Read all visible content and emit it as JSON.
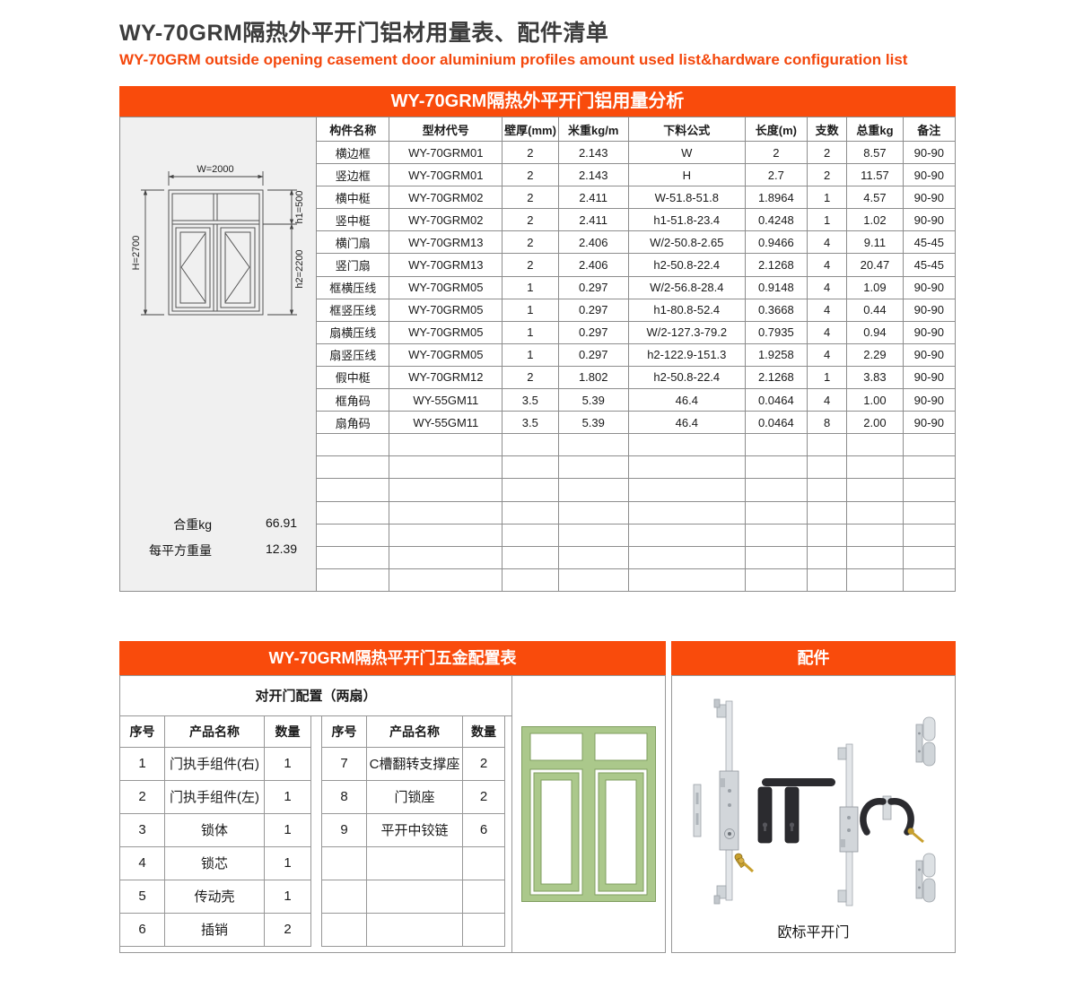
{
  "header": {
    "title": "WY-70GRM隔热外平开门铝材用量表、配件清单",
    "subtitle": "WY-70GRM outside opening casement door aluminium profiles  amount used list&hardware configuration list"
  },
  "colors": {
    "accent_orange": "#f94b0c",
    "panel_gray": "#f0f0f0",
    "table_border": "#8d8d8d",
    "door_green": "#abc88b",
    "door_green_edge": "#7f9e5f"
  },
  "section1": {
    "bar_title": "WY-70GRM隔热外平开门铝用量分析"
  },
  "diagram": {
    "w": "W=2000",
    "h": "H=2700",
    "h1": "h1=500",
    "h2": "h2=2200"
  },
  "totals": {
    "total_weight_label": "合重kg",
    "total_weight_value": "66.91",
    "per_sqm_label": "每平方重量",
    "per_sqm_value": "12.39"
  },
  "main_table": {
    "columns": [
      "构件名称",
      "型材代号",
      "壁厚(mm)",
      "米重kg/m",
      "下料公式",
      "长度(m)",
      "支数",
      "总重kg",
      "备注"
    ],
    "rows": [
      [
        "横边框",
        "WY-70GRM01",
        "2",
        "2.143",
        "W",
        "2",
        "2",
        "8.57",
        "90-90"
      ],
      [
        "竖边框",
        "WY-70GRM01",
        "2",
        "2.143",
        "H",
        "2.7",
        "2",
        "11.57",
        "90-90"
      ],
      [
        "横中梃",
        "WY-70GRM02",
        "2",
        "2.411",
        "W-51.8-51.8",
        "1.8964",
        "1",
        "4.57",
        "90-90"
      ],
      [
        "竖中梃",
        "WY-70GRM02",
        "2",
        "2.411",
        "h1-51.8-23.4",
        "0.4248",
        "1",
        "1.02",
        "90-90"
      ],
      [
        "横门扇",
        "WY-70GRM13",
        "2",
        "2.406",
        "W/2-50.8-2.65",
        "0.9466",
        "4",
        "9.11",
        "45-45"
      ],
      [
        "竖门扇",
        "WY-70GRM13",
        "2",
        "2.406",
        "h2-50.8-22.4",
        "2.1268",
        "4",
        "20.47",
        "45-45"
      ],
      [
        "框横压线",
        "WY-70GRM05",
        "1",
        "0.297",
        "W/2-56.8-28.4",
        "0.9148",
        "4",
        "1.09",
        "90-90"
      ],
      [
        "框竖压线",
        "WY-70GRM05",
        "1",
        "0.297",
        "h1-80.8-52.4",
        "0.3668",
        "4",
        "0.44",
        "90-90"
      ],
      [
        "扇横压线",
        "WY-70GRM05",
        "1",
        "0.297",
        "W/2-127.3-79.2",
        "0.7935",
        "4",
        "0.94",
        "90-90"
      ],
      [
        "扇竖压线",
        "WY-70GRM05",
        "1",
        "0.297",
        "h2-122.9-151.3",
        "1.9258",
        "4",
        "2.29",
        "90-90"
      ],
      [
        "假中梃",
        "WY-70GRM12",
        "2",
        "1.802",
        "h2-50.8-22.4",
        "2.1268",
        "1",
        "3.83",
        "90-90"
      ],
      [
        "框角码",
        "WY-55GM11",
        "3.5",
        "5.39",
        "46.4",
        "0.0464",
        "4",
        "1.00",
        "90-90"
      ],
      [
        "扇角码",
        "WY-55GM11",
        "3.5",
        "5.39",
        "46.4",
        "0.0464",
        "8",
        "2.00",
        "90-90"
      ]
    ],
    "empty_row_count": 7
  },
  "section2": {
    "left_bar_title": "WY-70GRM隔热平开门五金配置表",
    "right_bar_title": "配件",
    "subheader": "对开门配置（两扇）",
    "caption": "欧标平开门"
  },
  "hardware": {
    "columns": [
      "序号",
      "产品名称",
      "数量"
    ],
    "left_rows": [
      [
        "1",
        "门执手组件(右)",
        "1"
      ],
      [
        "2",
        "门执手组件(左)",
        "1"
      ],
      [
        "3",
        "锁体",
        "1"
      ],
      [
        "4",
        "锁芯",
        "1"
      ],
      [
        "5",
        "传动壳",
        "1"
      ],
      [
        "6",
        "插销",
        "2"
      ]
    ],
    "right_rows": [
      [
        "7",
        "C槽翻转支撑座",
        "2"
      ],
      [
        "8",
        "门锁座",
        "2"
      ],
      [
        "9",
        "平开中铰链",
        "6"
      ]
    ],
    "right_empty_rows": 3,
    "photo_parts": [
      "multi-point-lock-bar",
      "lock-body",
      "lock-cylinder-key",
      "door-handle-plates",
      "lever-handle-pair",
      "door-hinges",
      "keeper-strip"
    ]
  }
}
